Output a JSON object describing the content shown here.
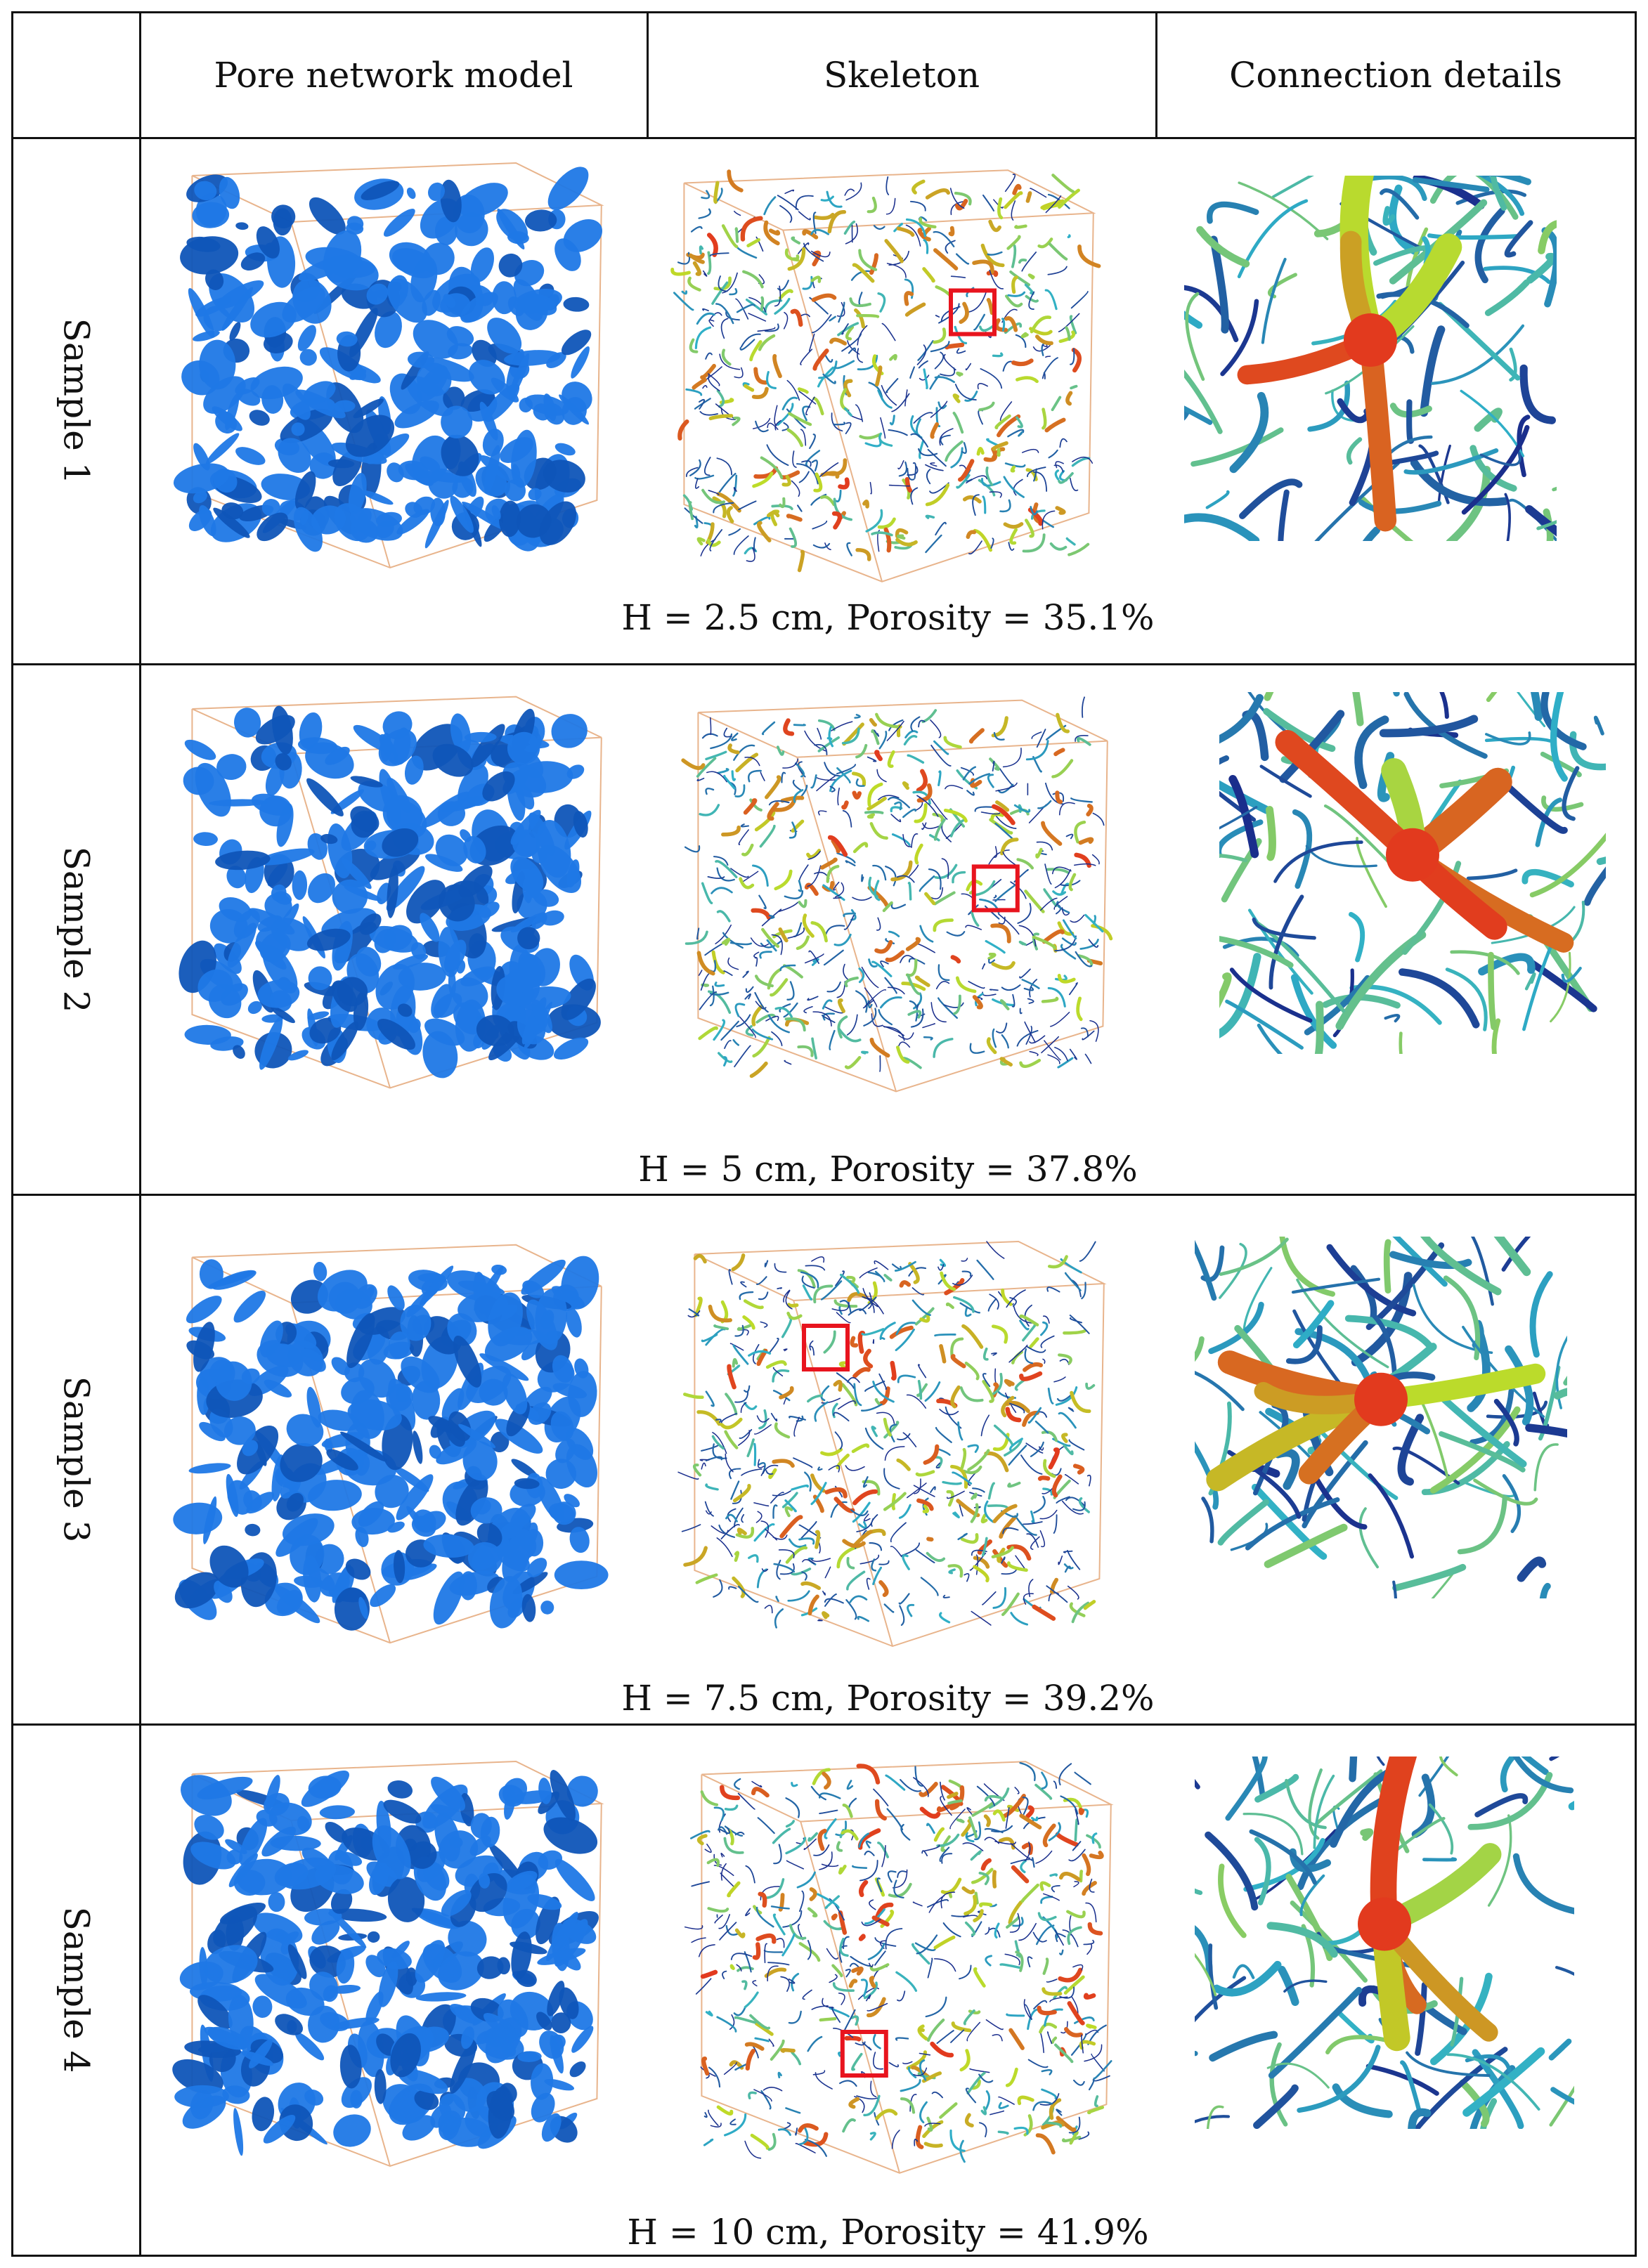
{
  "table": {
    "headers": [
      "",
      "Pore network model",
      "Skeleton",
      "Connection details"
    ],
    "rows": [
      {
        "label": "Sample 1",
        "caption": "H = 2.5 cm, Porosity = 35.1%"
      },
      {
        "label": "Sample 2",
        "caption": "H = 5 cm, Porosity = 37.8%"
      },
      {
        "label": "Sample 3",
        "caption": "H = 7.5 cm, Porosity = 39.2%"
      },
      {
        "label": "Sample 4",
        "caption": "H = 10 cm, Porosity = 41.9%"
      }
    ]
  },
  "colors": {
    "pore": "#1f78e6",
    "pore_dark": "#0f55b8",
    "skeleton_low": "#1a2d8c",
    "skeleton_mid": "#2fb0c8",
    "skeleton_high": "#e23a1e",
    "highlight_box": "#e8141e",
    "cube_edge": "#e8b48c"
  }
}
